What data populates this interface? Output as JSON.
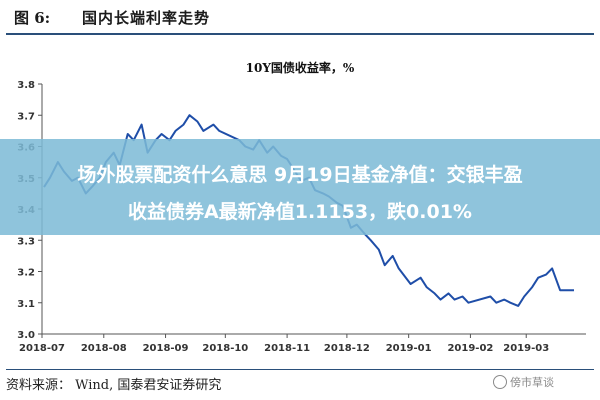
{
  "header": {
    "figure_label": "图 6:",
    "figure_title": "国内长端利率走势"
  },
  "chart_data": {
    "type": "line",
    "title": "10Y国债收益率，%",
    "xlabel": "",
    "ylabel": "",
    "ylim": [
      3.0,
      3.8
    ],
    "yticks": [
      "3.0",
      "3.1",
      "3.2",
      "3.3",
      "3.4",
      "3.5",
      "3.6",
      "3.7",
      "3.8"
    ],
    "xticks": [
      "2018-07",
      "2018-08",
      "2018-09",
      "2018-10",
      "2018-11",
      "2018-12",
      "2019-01",
      "2019-02",
      "2019-03"
    ],
    "grid": false,
    "line_color": "#1f4ea8",
    "series": [
      {
        "x": [
          "2018-07-02",
          "2018-07-05",
          "2018-07-09",
          "2018-07-12",
          "2018-07-16",
          "2018-07-19",
          "2018-07-23",
          "2018-07-26",
          "2018-07-30",
          "2018-08-02",
          "2018-08-06",
          "2018-08-09",
          "2018-08-13",
          "2018-08-16",
          "2018-08-20",
          "2018-08-23",
          "2018-08-27",
          "2018-08-30",
          "2018-09-03",
          "2018-09-06",
          "2018-09-10",
          "2018-09-13",
          "2018-09-17",
          "2018-09-20",
          "2018-09-25",
          "2018-09-28",
          "2018-10-08",
          "2018-10-11",
          "2018-10-15",
          "2018-10-18",
          "2018-10-22",
          "2018-10-25",
          "2018-10-29",
          "2018-11-01",
          "2018-11-05",
          "2018-11-08",
          "2018-11-12",
          "2018-11-15",
          "2018-11-19",
          "2018-11-22",
          "2018-11-26",
          "2018-11-29",
          "2018-12-03",
          "2018-12-06",
          "2018-12-10",
          "2018-12-13",
          "2018-12-17",
          "2018-12-20",
          "2018-12-24",
          "2018-12-27",
          "2019-01-02",
          "2019-01-07",
          "2019-01-10",
          "2019-01-14",
          "2019-01-17",
          "2019-01-21",
          "2019-01-24",
          "2019-01-28",
          "2019-01-31",
          "2019-02-11",
          "2019-02-14",
          "2019-02-18",
          "2019-02-21",
          "2019-02-25",
          "2019-02-28",
          "2019-03-04",
          "2019-03-07",
          "2019-03-11",
          "2019-03-14",
          "2019-03-18",
          "2019-03-21",
          "2019-03-25"
        ],
        "values": [
          3.47,
          3.5,
          3.55,
          3.52,
          3.49,
          3.5,
          3.45,
          3.47,
          3.5,
          3.55,
          3.58,
          3.54,
          3.64,
          3.62,
          3.67,
          3.58,
          3.62,
          3.64,
          3.62,
          3.65,
          3.67,
          3.7,
          3.68,
          3.65,
          3.67,
          3.65,
          3.62,
          3.6,
          3.59,
          3.62,
          3.58,
          3.6,
          3.57,
          3.56,
          3.52,
          3.49,
          3.5,
          3.46,
          3.45,
          3.44,
          3.42,
          3.41,
          3.34,
          3.35,
          3.32,
          3.3,
          3.27,
          3.22,
          3.25,
          3.21,
          3.16,
          3.18,
          3.15,
          3.13,
          3.11,
          3.13,
          3.11,
          3.12,
          3.1,
          3.12,
          3.1,
          3.11,
          3.1,
          3.09,
          3.12,
          3.15,
          3.18,
          3.19,
          3.21,
          3.14,
          3.14,
          3.14
        ]
      }
    ]
  },
  "overlay": {
    "line1": "场外股票配资什么意思 9月19日基金净值：交银丰盈",
    "line2": "收益债券A最新净值1.1153，跌0.01%"
  },
  "source": "资料来源：  Wind,  国泰君安证券研究",
  "watermark": "傍市草谈"
}
